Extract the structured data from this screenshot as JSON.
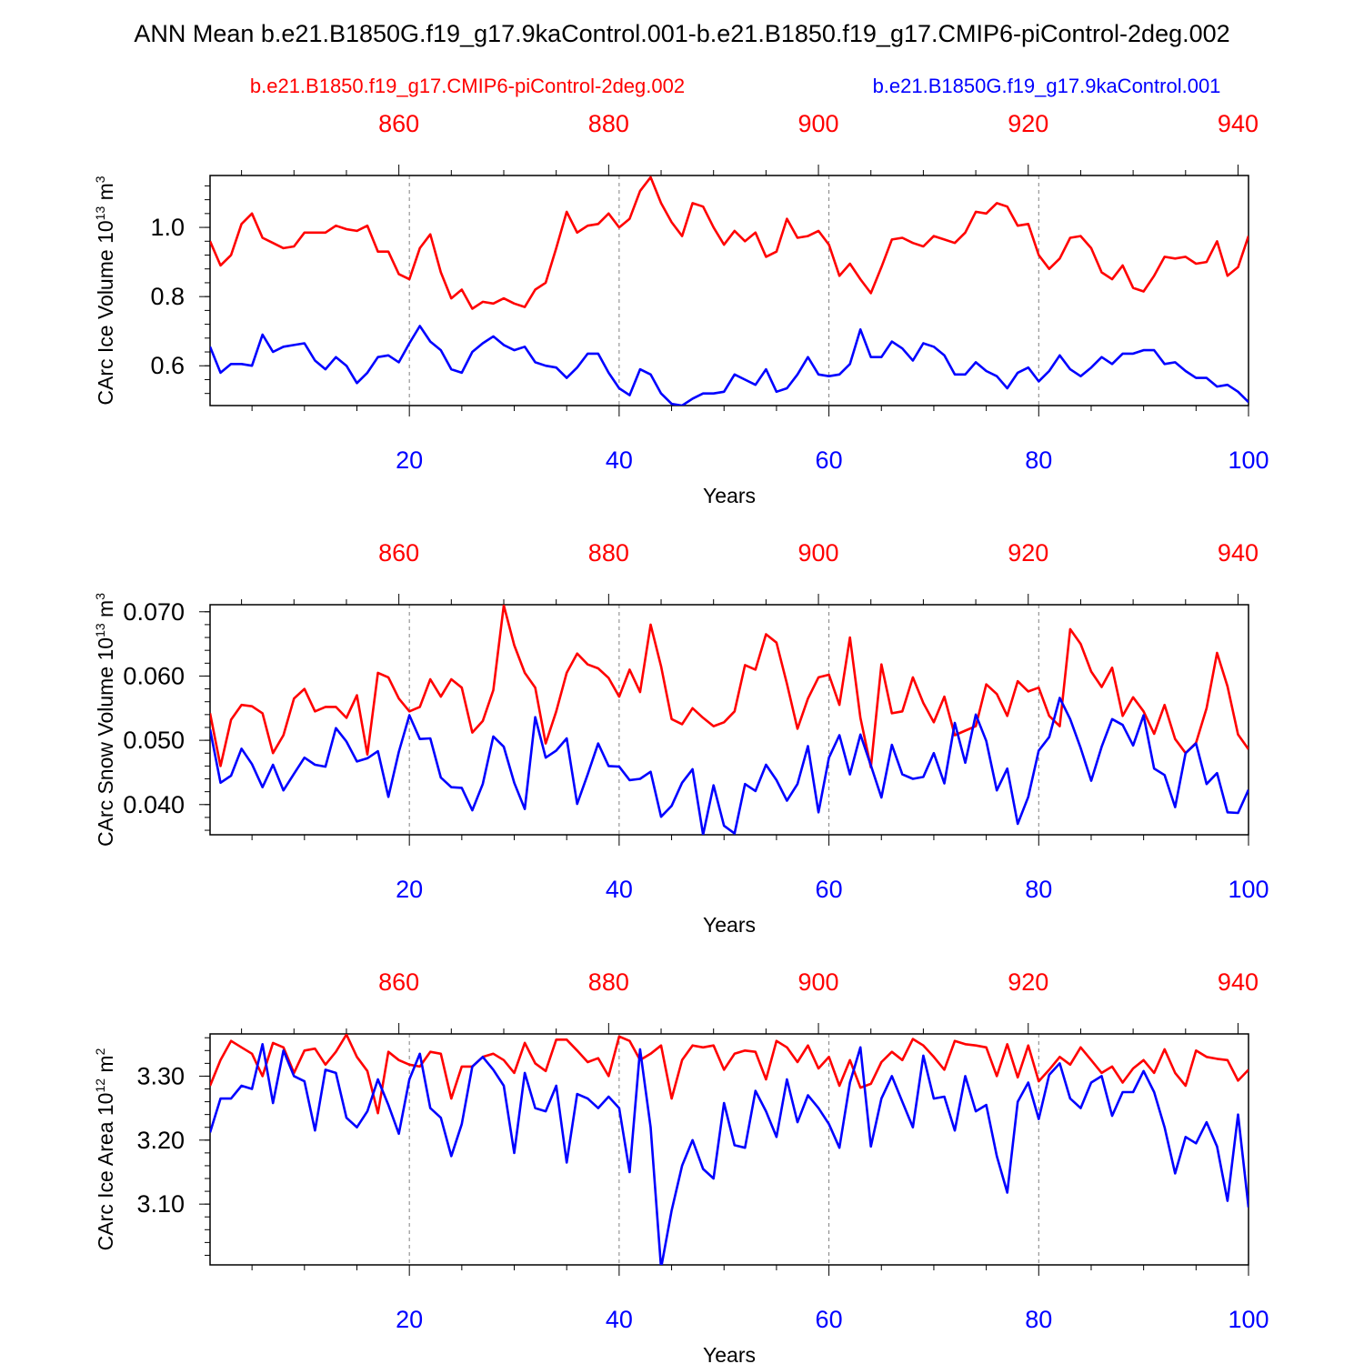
{
  "figure": {
    "title": "ANN Mean b.e21.B1850G.f19_g17.9kaControl.001-b.e21.B1850.f19_g17.CMIP6-piControl-2deg.002",
    "legend_red": "b.e21.B1850.f19_g17.CMIP6-piControl-2deg.002",
    "legend_blue": "b.e21.B1850G.f19_g17.9kaControl.001"
  },
  "colors": {
    "red": "#ff0000",
    "blue": "#0000ff",
    "axis": "#000000",
    "grid": "#808080"
  },
  "chart_data": [
    {
      "type": "line",
      "name": "ice_volume",
      "ylabel": "CArc Ice Volume",
      "yunits": "10",
      "yunits_exp": "13",
      "yunits_tail": " m",
      "yunits_exp2": "3",
      "xlabel": "Years",
      "xlim": [
        1,
        100
      ],
      "ylim": [
        0.485,
        1.15
      ],
      "yticks": [
        0.6,
        0.8,
        1.0
      ],
      "ytick_labels": [
        "0.6",
        "0.8",
        "1.0"
      ],
      "xticks_bottom": [
        20,
        40,
        60,
        80,
        100
      ],
      "xtick_labels_bottom": [
        "20",
        "40",
        "60",
        "80",
        "100"
      ],
      "xticks_top": [
        860,
        880,
        900,
        920,
        940
      ],
      "xtick_labels_top": [
        "860",
        "880",
        "900",
        "920",
        "940"
      ],
      "top_axis_offset": 841,
      "series": [
        {
          "name": "b.e21.B1850.f19_g17.CMIP6-piControl-2deg.002",
          "color": "red",
          "values": [
            0.96,
            0.89,
            0.92,
            1.01,
            1.04,
            0.97,
            0.955,
            0.94,
            0.945,
            0.985,
            0.985,
            0.985,
            1.005,
            0.995,
            0.99,
            1.005,
            0.93,
            0.93,
            0.865,
            0.85,
            0.94,
            0.98,
            0.87,
            0.795,
            0.82,
            0.765,
            0.785,
            0.78,
            0.795,
            0.78,
            0.77,
            0.82,
            0.84,
            0.94,
            1.045,
            0.985,
            1.005,
            1.01,
            1.04,
            1.0,
            1.025,
            1.105,
            1.145,
            1.07,
            1.015,
            0.975,
            1.07,
            1.06,
            1.0,
            0.95,
            0.99,
            0.96,
            0.985,
            0.915,
            0.93,
            1.025,
            0.97,
            0.975,
            0.99,
            0.95,
            0.86,
            0.895,
            0.85,
            0.81,
            0.885,
            0.965,
            0.97,
            0.955,
            0.945,
            0.975,
            0.965,
            0.955,
            0.985,
            1.045,
            1.04,
            1.07,
            1.06,
            1.005,
            1.01,
            0.92,
            0.88,
            0.91,
            0.97,
            0.975,
            0.94,
            0.87,
            0.85,
            0.89,
            0.825,
            0.815,
            0.86,
            0.915,
            0.91,
            0.915,
            0.895,
            0.9,
            0.96,
            0.86,
            0.885,
            0.975
          ]
        },
        {
          "name": "b.e21.B1850G.f19_g17.9kaControl.001",
          "color": "blue",
          "values": [
            0.655,
            0.58,
            0.605,
            0.605,
            0.6,
            0.69,
            0.64,
            0.655,
            0.66,
            0.665,
            0.615,
            0.59,
            0.625,
            0.6,
            0.55,
            0.58,
            0.625,
            0.63,
            0.61,
            0.665,
            0.715,
            0.67,
            0.645,
            0.59,
            0.58,
            0.64,
            0.665,
            0.685,
            0.66,
            0.645,
            0.655,
            0.61,
            0.6,
            0.595,
            0.565,
            0.595,
            0.635,
            0.635,
            0.58,
            0.535,
            0.515,
            0.59,
            0.575,
            0.52,
            0.49,
            0.485,
            0.505,
            0.52,
            0.52,
            0.525,
            0.575,
            0.56,
            0.545,
            0.59,
            0.525,
            0.535,
            0.575,
            0.625,
            0.575,
            0.57,
            0.575,
            0.605,
            0.705,
            0.625,
            0.625,
            0.67,
            0.65,
            0.615,
            0.665,
            0.655,
            0.63,
            0.575,
            0.575,
            0.61,
            0.585,
            0.57,
            0.535,
            0.58,
            0.595,
            0.555,
            0.585,
            0.63,
            0.59,
            0.57,
            0.595,
            0.625,
            0.605,
            0.635,
            0.635,
            0.645,
            0.645,
            0.605,
            0.61,
            0.585,
            0.565,
            0.565,
            0.54,
            0.545,
            0.525,
            0.495
          ]
        }
      ]
    },
    {
      "type": "line",
      "name": "snow_volume",
      "ylabel": "CArc Snow Volume",
      "yunits": "10",
      "yunits_exp": "13",
      "yunits_tail": " m",
      "yunits_exp2": "3",
      "xlabel": "Years",
      "xlim": [
        1,
        100
      ],
      "ylim": [
        0.0353,
        0.0711
      ],
      "yticks": [
        0.04,
        0.05,
        0.06,
        0.07
      ],
      "ytick_labels": [
        "0.040",
        "0.050",
        "0.060",
        "0.070"
      ],
      "xticks_bottom": [
        20,
        40,
        60,
        80,
        100
      ],
      "xtick_labels_bottom": [
        "20",
        "40",
        "60",
        "80",
        "100"
      ],
      "xticks_top": [
        860,
        880,
        900,
        920,
        940
      ],
      "xtick_labels_top": [
        "860",
        "880",
        "900",
        "920",
        "940"
      ],
      "top_axis_offset": 841,
      "series": [
        {
          "name": "b.e21.B1850.f19_g17.CMIP6-piControl-2deg.002",
          "color": "red",
          "values": [
            0.0542,
            0.046,
            0.0532,
            0.0555,
            0.0553,
            0.0542,
            0.048,
            0.0508,
            0.0565,
            0.058,
            0.0545,
            0.0552,
            0.0552,
            0.0535,
            0.057,
            0.0478,
            0.0605,
            0.0598,
            0.0565,
            0.0545,
            0.0552,
            0.0595,
            0.0568,
            0.0595,
            0.0582,
            0.0512,
            0.053,
            0.0578,
            0.071,
            0.0648,
            0.0605,
            0.0582,
            0.0495,
            0.0545,
            0.0605,
            0.0635,
            0.0618,
            0.0612,
            0.0597,
            0.0568,
            0.061,
            0.0575,
            0.068,
            0.0615,
            0.0533,
            0.0525,
            0.055,
            0.0535,
            0.0522,
            0.0528,
            0.0545,
            0.0617,
            0.061,
            0.0665,
            0.0652,
            0.0588,
            0.0518,
            0.0565,
            0.0598,
            0.0602,
            0.0555,
            0.066,
            0.0535,
            0.0458,
            0.0618,
            0.0542,
            0.0545,
            0.0598,
            0.0558,
            0.0528,
            0.0568,
            0.0508,
            0.0515,
            0.0522,
            0.0587,
            0.0572,
            0.0538,
            0.0592,
            0.0576,
            0.0582,
            0.0538,
            0.0522,
            0.0673,
            0.065,
            0.0607,
            0.0583,
            0.0613,
            0.0538,
            0.0567,
            0.0545,
            0.051,
            0.0555,
            0.0502,
            0.048,
            0.0496,
            0.055,
            0.0636,
            0.0584,
            0.0509,
            0.0486
          ]
        },
        {
          "name": "b.e21.B1850G.f19_g17.9kaControl.001",
          "color": "blue",
          "values": [
            0.0517,
            0.0434,
            0.0445,
            0.0487,
            0.0463,
            0.0427,
            0.0462,
            0.0422,
            0.0448,
            0.0473,
            0.0462,
            0.0459,
            0.0519,
            0.0498,
            0.0467,
            0.0472,
            0.0483,
            0.0412,
            0.0482,
            0.0539,
            0.0502,
            0.0503,
            0.0442,
            0.0427,
            0.0426,
            0.0391,
            0.0432,
            0.0506,
            0.049,
            0.0434,
            0.0393,
            0.0536,
            0.0473,
            0.0484,
            0.0503,
            0.0401,
            0.0447,
            0.0495,
            0.046,
            0.0459,
            0.0438,
            0.044,
            0.0451,
            0.0381,
            0.0398,
            0.0434,
            0.0455,
            0.0353,
            0.043,
            0.0367,
            0.0355,
            0.0432,
            0.0421,
            0.0462,
            0.0438,
            0.0406,
            0.0432,
            0.0491,
            0.0388,
            0.0473,
            0.0508,
            0.0447,
            0.0509,
            0.0461,
            0.0411,
            0.0493,
            0.0447,
            0.044,
            0.0443,
            0.048,
            0.0433,
            0.0527,
            0.0465,
            0.054,
            0.0499,
            0.0422,
            0.0456,
            0.037,
            0.0412,
            0.0484,
            0.0505,
            0.0566,
            0.0533,
            0.0488,
            0.0437,
            0.049,
            0.0533,
            0.0524,
            0.0492,
            0.0539,
            0.0456,
            0.0446,
            0.0396,
            0.048,
            0.0495,
            0.0432,
            0.0449,
            0.0388,
            0.0387,
            0.0423
          ]
        }
      ]
    },
    {
      "type": "line",
      "name": "ice_area",
      "ylabel": "CArc Ice Area",
      "yunits": "10",
      "yunits_exp": "12",
      "yunits_tail": " m",
      "yunits_exp2": "2",
      "xlabel": "Years",
      "xlim": [
        1,
        100
      ],
      "ylim": [
        3.005,
        3.366
      ],
      "yticks": [
        3.1,
        3.2,
        3.3
      ],
      "ytick_labels": [
        "3.10",
        "3.20",
        "3.30"
      ],
      "xticks_bottom": [
        20,
        40,
        60,
        80,
        100
      ],
      "xtick_labels_bottom": [
        "20",
        "40",
        "60",
        "80",
        "100"
      ],
      "xticks_top": [
        860,
        880,
        900,
        920,
        940
      ],
      "xtick_labels_top": [
        "860",
        "880",
        "900",
        "920",
        "940"
      ],
      "top_axis_offset": 841,
      "series": [
        {
          "name": "b.e21.B1850.f19_g17.CMIP6-piControl-2deg.002",
          "color": "red",
          "values": [
            3.285,
            3.325,
            3.355,
            3.345,
            3.335,
            3.3,
            3.352,
            3.345,
            3.305,
            3.34,
            3.343,
            3.318,
            3.338,
            3.365,
            3.33,
            3.308,
            3.242,
            3.338,
            3.325,
            3.318,
            3.315,
            3.338,
            3.335,
            3.265,
            3.315,
            3.315,
            3.33,
            3.335,
            3.325,
            3.305,
            3.352,
            3.32,
            3.308,
            3.357,
            3.357,
            3.34,
            3.322,
            3.328,
            3.3,
            3.362,
            3.355,
            3.325,
            3.335,
            3.348,
            3.265,
            3.325,
            3.348,
            3.345,
            3.348,
            3.31,
            3.335,
            3.34,
            3.338,
            3.295,
            3.355,
            3.345,
            3.322,
            3.348,
            3.312,
            3.33,
            3.285,
            3.325,
            3.282,
            3.288,
            3.322,
            3.338,
            3.325,
            3.358,
            3.348,
            3.33,
            3.31,
            3.355,
            3.35,
            3.348,
            3.345,
            3.3,
            3.35,
            3.298,
            3.348,
            3.292,
            3.31,
            3.33,
            3.318,
            3.345,
            3.325,
            3.305,
            3.315,
            3.29,
            3.312,
            3.325,
            3.305,
            3.342,
            3.305,
            3.285,
            3.34,
            3.33,
            3.327,
            3.325,
            3.293,
            3.31
          ]
        },
        {
          "name": "b.e21.B1850G.f19_g17.9kaControl.001",
          "color": "blue",
          "values": [
            3.212,
            3.265,
            3.265,
            3.285,
            3.28,
            3.35,
            3.258,
            3.34,
            3.3,
            3.292,
            3.215,
            3.31,
            3.305,
            3.235,
            3.22,
            3.245,
            3.295,
            3.255,
            3.21,
            3.295,
            3.335,
            3.25,
            3.235,
            3.175,
            3.225,
            3.315,
            3.33,
            3.31,
            3.285,
            3.18,
            3.305,
            3.25,
            3.245,
            3.285,
            3.165,
            3.272,
            3.265,
            3.25,
            3.268,
            3.25,
            3.15,
            3.342,
            3.22,
            3.0,
            3.09,
            3.16,
            3.2,
            3.155,
            3.14,
            3.258,
            3.192,
            3.188,
            3.277,
            3.245,
            3.205,
            3.295,
            3.228,
            3.27,
            3.25,
            3.225,
            3.188,
            3.29,
            3.345,
            3.19,
            3.265,
            3.3,
            3.26,
            3.22,
            3.332,
            3.265,
            3.268,
            3.215,
            3.3,
            3.245,
            3.255,
            3.175,
            3.118,
            3.26,
            3.29,
            3.233,
            3.302,
            3.32,
            3.265,
            3.25,
            3.29,
            3.3,
            3.238,
            3.275,
            3.275,
            3.308,
            3.275,
            3.22,
            3.148,
            3.205,
            3.195,
            3.228,
            3.19,
            3.105,
            3.24,
            3.095
          ]
        }
      ]
    }
  ]
}
